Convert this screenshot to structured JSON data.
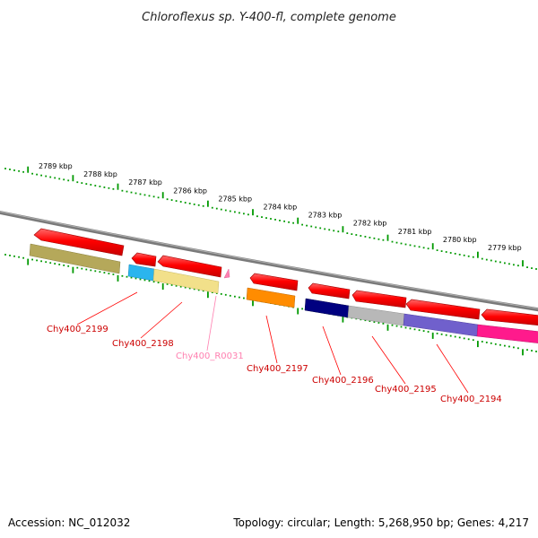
{
  "title": "Chloroflexus sp. Y-400-fl, complete genome",
  "footer": {
    "accession": "Accession: NC_012032",
    "summary": "Topology: circular; Length: 5,268,950 bp; Genes: 4,217"
  },
  "scale": {
    "unit": "kbp",
    "ticks": [
      "2789 kbp",
      "2788 kbp",
      "2787 kbp",
      "2786 kbp",
      "2785 kbp",
      "2784 kbp",
      "2783 kbp",
      "2782 kbp",
      "2781 kbp",
      "2780 kbp",
      "2779 kbp"
    ]
  },
  "colors": {
    "backbone": "#808080",
    "tick_major": "#009900",
    "tick_minor": "#009900",
    "label_line": "#ff0000",
    "rna_label": "#ff80b0"
  },
  "genes": [
    {
      "label": "Chy400_2199",
      "color": "#ff0000",
      "category_color": "#b5a85a"
    },
    {
      "label": "Chy400_2198",
      "color": "#ff0000",
      "category_color": "#2ab5ee"
    },
    {
      "label": "Chy400_R0031",
      "color": "#ff80b0",
      "category_color": ""
    },
    {
      "label": "Chy400_2197",
      "color": "#ff0000",
      "category_color": "#ff8c00"
    },
    {
      "label": "Chy400_2196",
      "color": "#ff0000",
      "category_color": "#000080"
    },
    {
      "label": "Chy400_2195",
      "color": "#ff0000",
      "category_color": "#b8b8b8"
    },
    {
      "label": "Chy400_2194",
      "color": "#ff0000",
      "category_color": "#7060cc"
    }
  ],
  "extra_category_colors": [
    "#f2e08a",
    "#ff1a8c"
  ]
}
